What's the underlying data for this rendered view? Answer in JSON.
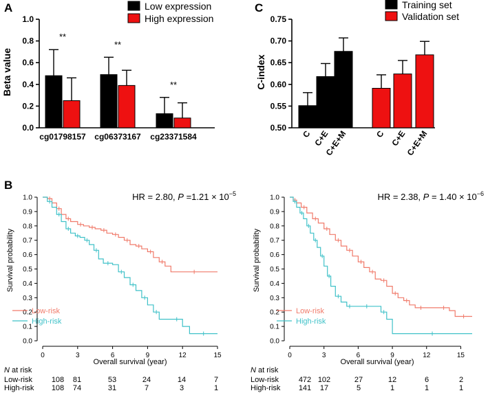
{
  "panels": {
    "a": {
      "letter": "A",
      "stars_label": "**",
      "chart_data": {
        "type": "bar",
        "ylabel": "Beta value",
        "ylim": [
          0,
          1.0
        ],
        "yticks": [
          "0.0",
          "0.2",
          "0.4",
          "0.6",
          "0.8",
          "1.0"
        ],
        "ytick_values": [
          0,
          0.2,
          0.4,
          0.6,
          0.8,
          1.0
        ],
        "categories": [
          "cg01798157",
          "cg06373167",
          "cg23371584"
        ],
        "series": [
          {
            "name": "Low expression",
            "color": "#000000",
            "values": [
              0.48,
              0.49,
              0.13
            ],
            "errors": [
              0.24,
              0.16,
              0.15
            ]
          },
          {
            "name": "High expression",
            "color": "#ee1111",
            "values": [
              0.25,
              0.39,
              0.09
            ],
            "errors": [
              0.21,
              0.14,
              0.14
            ]
          }
        ],
        "significance": [
          "**",
          "**",
          "**"
        ]
      }
    },
    "c": {
      "letter": "C",
      "chart_data": {
        "type": "bar",
        "ylabel": "C-index",
        "ylim": [
          0.5,
          0.75
        ],
        "yticks": [
          "0.50",
          "0.55",
          "0.60",
          "0.65",
          "0.70",
          "0.75"
        ],
        "ytick_values": [
          0.5,
          0.55,
          0.6,
          0.65,
          0.7,
          0.75
        ],
        "groups": [
          {
            "name": "Training set",
            "color": "#000000",
            "categories": [
              "C",
              "C+E",
              "C+E+M"
            ],
            "values": [
              0.551,
              0.618,
              0.676
            ],
            "errors": [
              0.03,
              0.03,
              0.031
            ]
          },
          {
            "name": "Validation set",
            "color": "#ee1111",
            "categories": [
              "C",
              "C+E",
              "C+E+M"
            ],
            "values": [
              0.591,
              0.624,
              0.668
            ],
            "errors": [
              0.031,
              0.031,
              0.031
            ]
          }
        ]
      }
    },
    "b": {
      "letter": "B",
      "chart_data": [
        {
          "type": "line",
          "hr_text": "HR = 2.80, ",
          "p_italic": "P",
          "p_text": " =1.21 × 10",
          "p_exp": "−5",
          "xlabel": "Overall survival (year)",
          "ylabel": "Survival probability",
          "xlim": [
            0,
            15
          ],
          "ylim": [
            0,
            1.0
          ],
          "xticks": [
            "0",
            "3",
            "6",
            "9",
            "12",
            "15"
          ],
          "xtick_values": [
            0,
            3,
            6,
            9,
            12,
            15
          ],
          "yticks": [
            "0.0",
            "0.1",
            "0.2",
            "0.3",
            "0.4",
            "0.5",
            "0.6",
            "0.7",
            "0.8",
            "0.9",
            "1.0"
          ],
          "ytick_values": [
            0,
            0.1,
            0.2,
            0.3,
            0.4,
            0.5,
            0.6,
            0.7,
            0.8,
            0.9,
            1.0
          ],
          "series": [
            {
              "name": "Low-risk",
              "color": "#f07a6a",
              "x": [
                0,
                0.4,
                0.8,
                1.2,
                1.6,
                2.0,
                2.4,
                3.0,
                3.5,
                4.0,
                4.5,
                5.0,
                5.5,
                6.0,
                6.5,
                7.0,
                7.5,
                8.0,
                8.5,
                9.0,
                9.5,
                10.0,
                10.5,
                11.0,
                15.0
              ],
              "y": [
                1.0,
                0.99,
                0.96,
                0.92,
                0.88,
                0.85,
                0.83,
                0.81,
                0.8,
                0.79,
                0.78,
                0.77,
                0.75,
                0.74,
                0.72,
                0.7,
                0.67,
                0.66,
                0.64,
                0.62,
                0.58,
                0.55,
                0.52,
                0.48,
                0.48
              ]
            },
            {
              "name": "High-risk",
              "color": "#3fc1c8",
              "x": [
                0,
                0.4,
                0.8,
                1.2,
                1.6,
                2.0,
                2.4,
                2.8,
                3.2,
                3.6,
                4.0,
                4.4,
                4.8,
                5.2,
                6.0,
                6.5,
                7.0,
                7.5,
                8.0,
                8.5,
                9.0,
                9.5,
                10.0,
                11.0,
                12.0,
                12.6,
                15.0
              ],
              "y": [
                1.0,
                0.97,
                0.93,
                0.88,
                0.83,
                0.78,
                0.75,
                0.73,
                0.72,
                0.7,
                0.67,
                0.63,
                0.57,
                0.54,
                0.53,
                0.48,
                0.44,
                0.39,
                0.35,
                0.3,
                0.25,
                0.2,
                0.15,
                0.15,
                0.1,
                0.05,
                0.05
              ]
            }
          ],
          "at_risk_title_italic": "N",
          "at_risk_title": " at risk",
          "at_risk": [
            {
              "name": "Low-risk",
              "counts": [
                "108",
                "81",
                "53",
                "24",
                "14",
                "7"
              ]
            },
            {
              "name": "High-risk",
              "counts": [
                "108",
                "74",
                "31",
                "7",
                "3",
                "1"
              ]
            }
          ]
        },
        {
          "type": "line",
          "hr_text": "HR = 2.38, ",
          "p_italic": "P",
          "p_text": " = 1.40 × 10",
          "p_exp": "−6",
          "xlabel": "Overall survival (year)",
          "ylabel": "Survival probability",
          "xlim": [
            0,
            16
          ],
          "ylim": [
            0,
            1.0
          ],
          "xticks": [
            "0",
            "3",
            "6",
            "9",
            "12",
            "15"
          ],
          "xtick_values": [
            0,
            3,
            6,
            9,
            12,
            15
          ],
          "yticks": [
            "0.0",
            "0.1",
            "0.2",
            "0.3",
            "0.4",
            "0.5",
            "0.6",
            "0.7",
            "0.8",
            "0.9",
            "1.0"
          ],
          "ytick_values": [
            0,
            0.1,
            0.2,
            0.3,
            0.4,
            0.5,
            0.6,
            0.7,
            0.8,
            0.9,
            1.0
          ],
          "series": [
            {
              "name": "Low-risk",
              "color": "#f07a6a",
              "x": [
                0,
                0.3,
                0.6,
                1.0,
                1.5,
                2.0,
                2.5,
                3.0,
                3.5,
                4.0,
                4.5,
                5.0,
                5.5,
                6.0,
                6.5,
                7.0,
                7.5,
                8.0,
                8.5,
                9.0,
                9.5,
                10.0,
                10.5,
                11.0,
                12.0,
                13.0,
                14.0,
                14.5,
                16.0
              ],
              "y": [
                1.0,
                0.98,
                0.96,
                0.93,
                0.89,
                0.85,
                0.82,
                0.78,
                0.74,
                0.7,
                0.66,
                0.63,
                0.59,
                0.55,
                0.51,
                0.48,
                0.43,
                0.42,
                0.38,
                0.33,
                0.3,
                0.28,
                0.25,
                0.23,
                0.23,
                0.23,
                0.21,
                0.17,
                0.17
              ]
            },
            {
              "name": "High-risk",
              "color": "#3fc1c8",
              "x": [
                0,
                0.3,
                0.6,
                0.9,
                1.2,
                1.5,
                1.8,
                2.1,
                2.4,
                2.7,
                3.0,
                3.3,
                3.6,
                4.0,
                4.5,
                5.0,
                5.5,
                6.0,
                7.5,
                8.0,
                8.5,
                9.0,
                16.0
              ],
              "y": [
                1.0,
                0.97,
                0.93,
                0.89,
                0.85,
                0.8,
                0.75,
                0.7,
                0.65,
                0.59,
                0.52,
                0.45,
                0.38,
                0.31,
                0.27,
                0.24,
                0.24,
                0.24,
                0.24,
                0.2,
                0.15,
                0.05,
                0.05
              ]
            }
          ],
          "at_risk_title_italic": "N",
          "at_risk_title": " at risk",
          "at_risk": [
            {
              "name": "Low-risk",
              "counts": [
                "472",
                "102",
                "27",
                "12",
                "6",
                "2"
              ]
            },
            {
              "name": "High-risk",
              "counts": [
                "141",
                "17",
                "5",
                "1",
                "1",
                "1"
              ]
            }
          ]
        }
      ]
    }
  }
}
